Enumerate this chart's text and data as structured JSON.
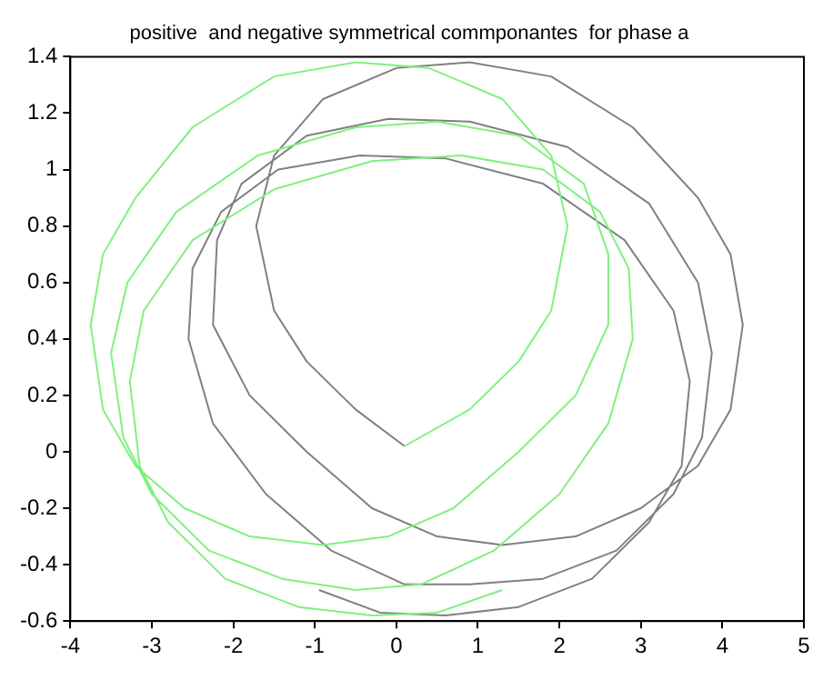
{
  "chart_data": {
    "type": "line",
    "title": "positive  and negative symmetrical commponantes  for phase a",
    "series": [
      {
        "color": "#80f080",
        "x": [
          0.1,
          0.9,
          1.5,
          1.9,
          2.1,
          1.9,
          1.3,
          0.4,
          -0.5,
          -1.5,
          -2.5,
          -3.2,
          -3.6,
          -3.75,
          -3.6,
          -3.2,
          -2.6,
          -1.8,
          -0.9,
          -0.1,
          0.7,
          1.5,
          2.2,
          2.6,
          2.6,
          2.3,
          1.5,
          0.5,
          -0.5,
          -1.7,
          -2.7,
          -3.3,
          -3.5,
          -3.35,
          -3.0,
          -2.3,
          -1.4,
          -0.5,
          0.3,
          1.2,
          2.0,
          2.6,
          2.9,
          2.85,
          2.5,
          1.8,
          0.8,
          -0.3,
          -1.5,
          -2.5,
          -3.1,
          -3.27,
          -3.15,
          -2.8,
          -2.1,
          -1.2,
          -0.3,
          0.5,
          1.3
        ],
        "values": [
          0.02,
          0.15,
          0.32,
          0.5,
          0.8,
          1.05,
          1.25,
          1.36,
          1.38,
          1.33,
          1.15,
          0.9,
          0.7,
          0.45,
          0.15,
          -0.05,
          -0.2,
          -0.3,
          -0.33,
          -0.3,
          -0.2,
          0.0,
          0.2,
          0.45,
          0.7,
          0.95,
          1.12,
          1.17,
          1.15,
          1.05,
          0.85,
          0.6,
          0.35,
          0.05,
          -0.15,
          -0.35,
          -0.45,
          -0.49,
          -0.47,
          -0.35,
          -0.15,
          0.1,
          0.4,
          0.65,
          0.85,
          1.0,
          1.05,
          1.03,
          0.93,
          0.75,
          0.5,
          0.25,
          -0.05,
          -0.25,
          -0.45,
          -0.55,
          -0.58,
          -0.57,
          -0.49
        ]
      },
      {
        "color": "#808080",
        "x": [
          0.1,
          -0.5,
          -1.1,
          -1.5,
          -1.72,
          -1.5,
          -0.9,
          0.0,
          0.9,
          1.9,
          2.9,
          3.7,
          4.1,
          4.25,
          4.1,
          3.7,
          3.0,
          2.2,
          1.3,
          0.5,
          -0.3,
          -1.1,
          -1.8,
          -2.25,
          -2.2,
          -1.9,
          -1.1,
          -0.1,
          0.9,
          2.1,
          3.1,
          3.7,
          3.87,
          3.75,
          3.4,
          2.7,
          1.8,
          0.9,
          0.1,
          -0.8,
          -1.6,
          -2.25,
          -2.55,
          -2.5,
          -2.15,
          -1.45,
          -0.45,
          0.6,
          1.8,
          2.8,
          3.4,
          3.6,
          3.5,
          3.1,
          2.4,
          1.5,
          0.6,
          -0.2,
          -0.95
        ],
        "values": [
          0.02,
          0.15,
          0.32,
          0.5,
          0.8,
          1.05,
          1.25,
          1.36,
          1.38,
          1.33,
          1.15,
          0.9,
          0.7,
          0.45,
          0.15,
          -0.05,
          -0.2,
          -0.3,
          -0.33,
          -0.3,
          -0.2,
          0.0,
          0.2,
          0.45,
          0.75,
          0.95,
          1.12,
          1.18,
          1.17,
          1.08,
          0.88,
          0.6,
          0.35,
          0.05,
          -0.15,
          -0.35,
          -0.45,
          -0.47,
          -0.47,
          -0.35,
          -0.15,
          0.1,
          0.4,
          0.65,
          0.85,
          1.0,
          1.05,
          1.04,
          0.95,
          0.75,
          0.5,
          0.25,
          -0.05,
          -0.25,
          -0.45,
          -0.55,
          -0.58,
          -0.57,
          -0.49
        ]
      }
    ],
    "xlim": [
      -4,
      5
    ],
    "xticks": [
      -4,
      -3,
      -2,
      -1,
      0,
      1,
      2,
      3,
      4,
      5
    ],
    "ylim": [
      -0.6,
      1.4
    ],
    "yticks": [
      -0.6,
      -0.4,
      -0.2,
      0,
      0.2,
      0.4,
      0.6,
      0.8,
      1,
      1.2,
      1.4
    ]
  }
}
